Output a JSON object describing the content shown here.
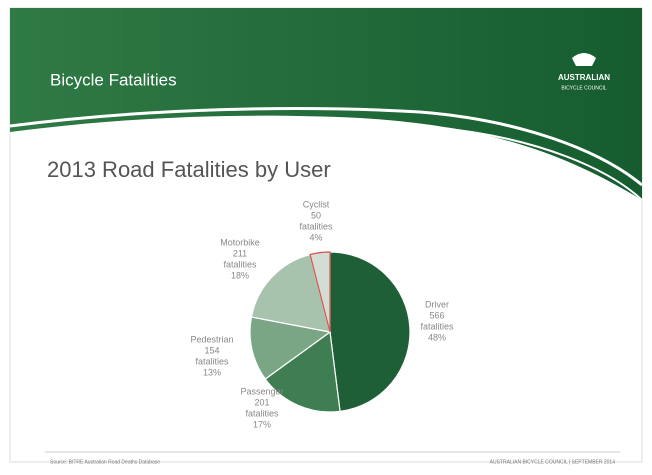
{
  "header": {
    "title": "Bicycle Fatalities",
    "logo": "AUSTRALIAN",
    "logo_sub": "BICYCLE COUNCIL"
  },
  "chart_data": {
    "type": "pie",
    "title": "2013 Road Fatalities by User",
    "categories": [
      "Driver",
      "Passenger",
      "Pedestrian",
      "Motorbike",
      "Cyclist"
    ],
    "counts": [
      566,
      201,
      154,
      211,
      50
    ],
    "count_unit": "fatalities",
    "values": [
      48,
      17,
      13,
      18,
      4
    ],
    "value_labels": [
      "48%",
      "17%",
      "13%",
      "18%",
      "4%"
    ],
    "colors": [
      "#1f5f37",
      "#3f7e52",
      "#7aa686",
      "#a8c3ad",
      "#d3ddd3"
    ]
  },
  "footer": {
    "source": "Source: BITRE Australian Road Deaths Database",
    "right": "AUSTRALIAN BICYCLE COUNCIL | SEPTEMBER 2014"
  }
}
